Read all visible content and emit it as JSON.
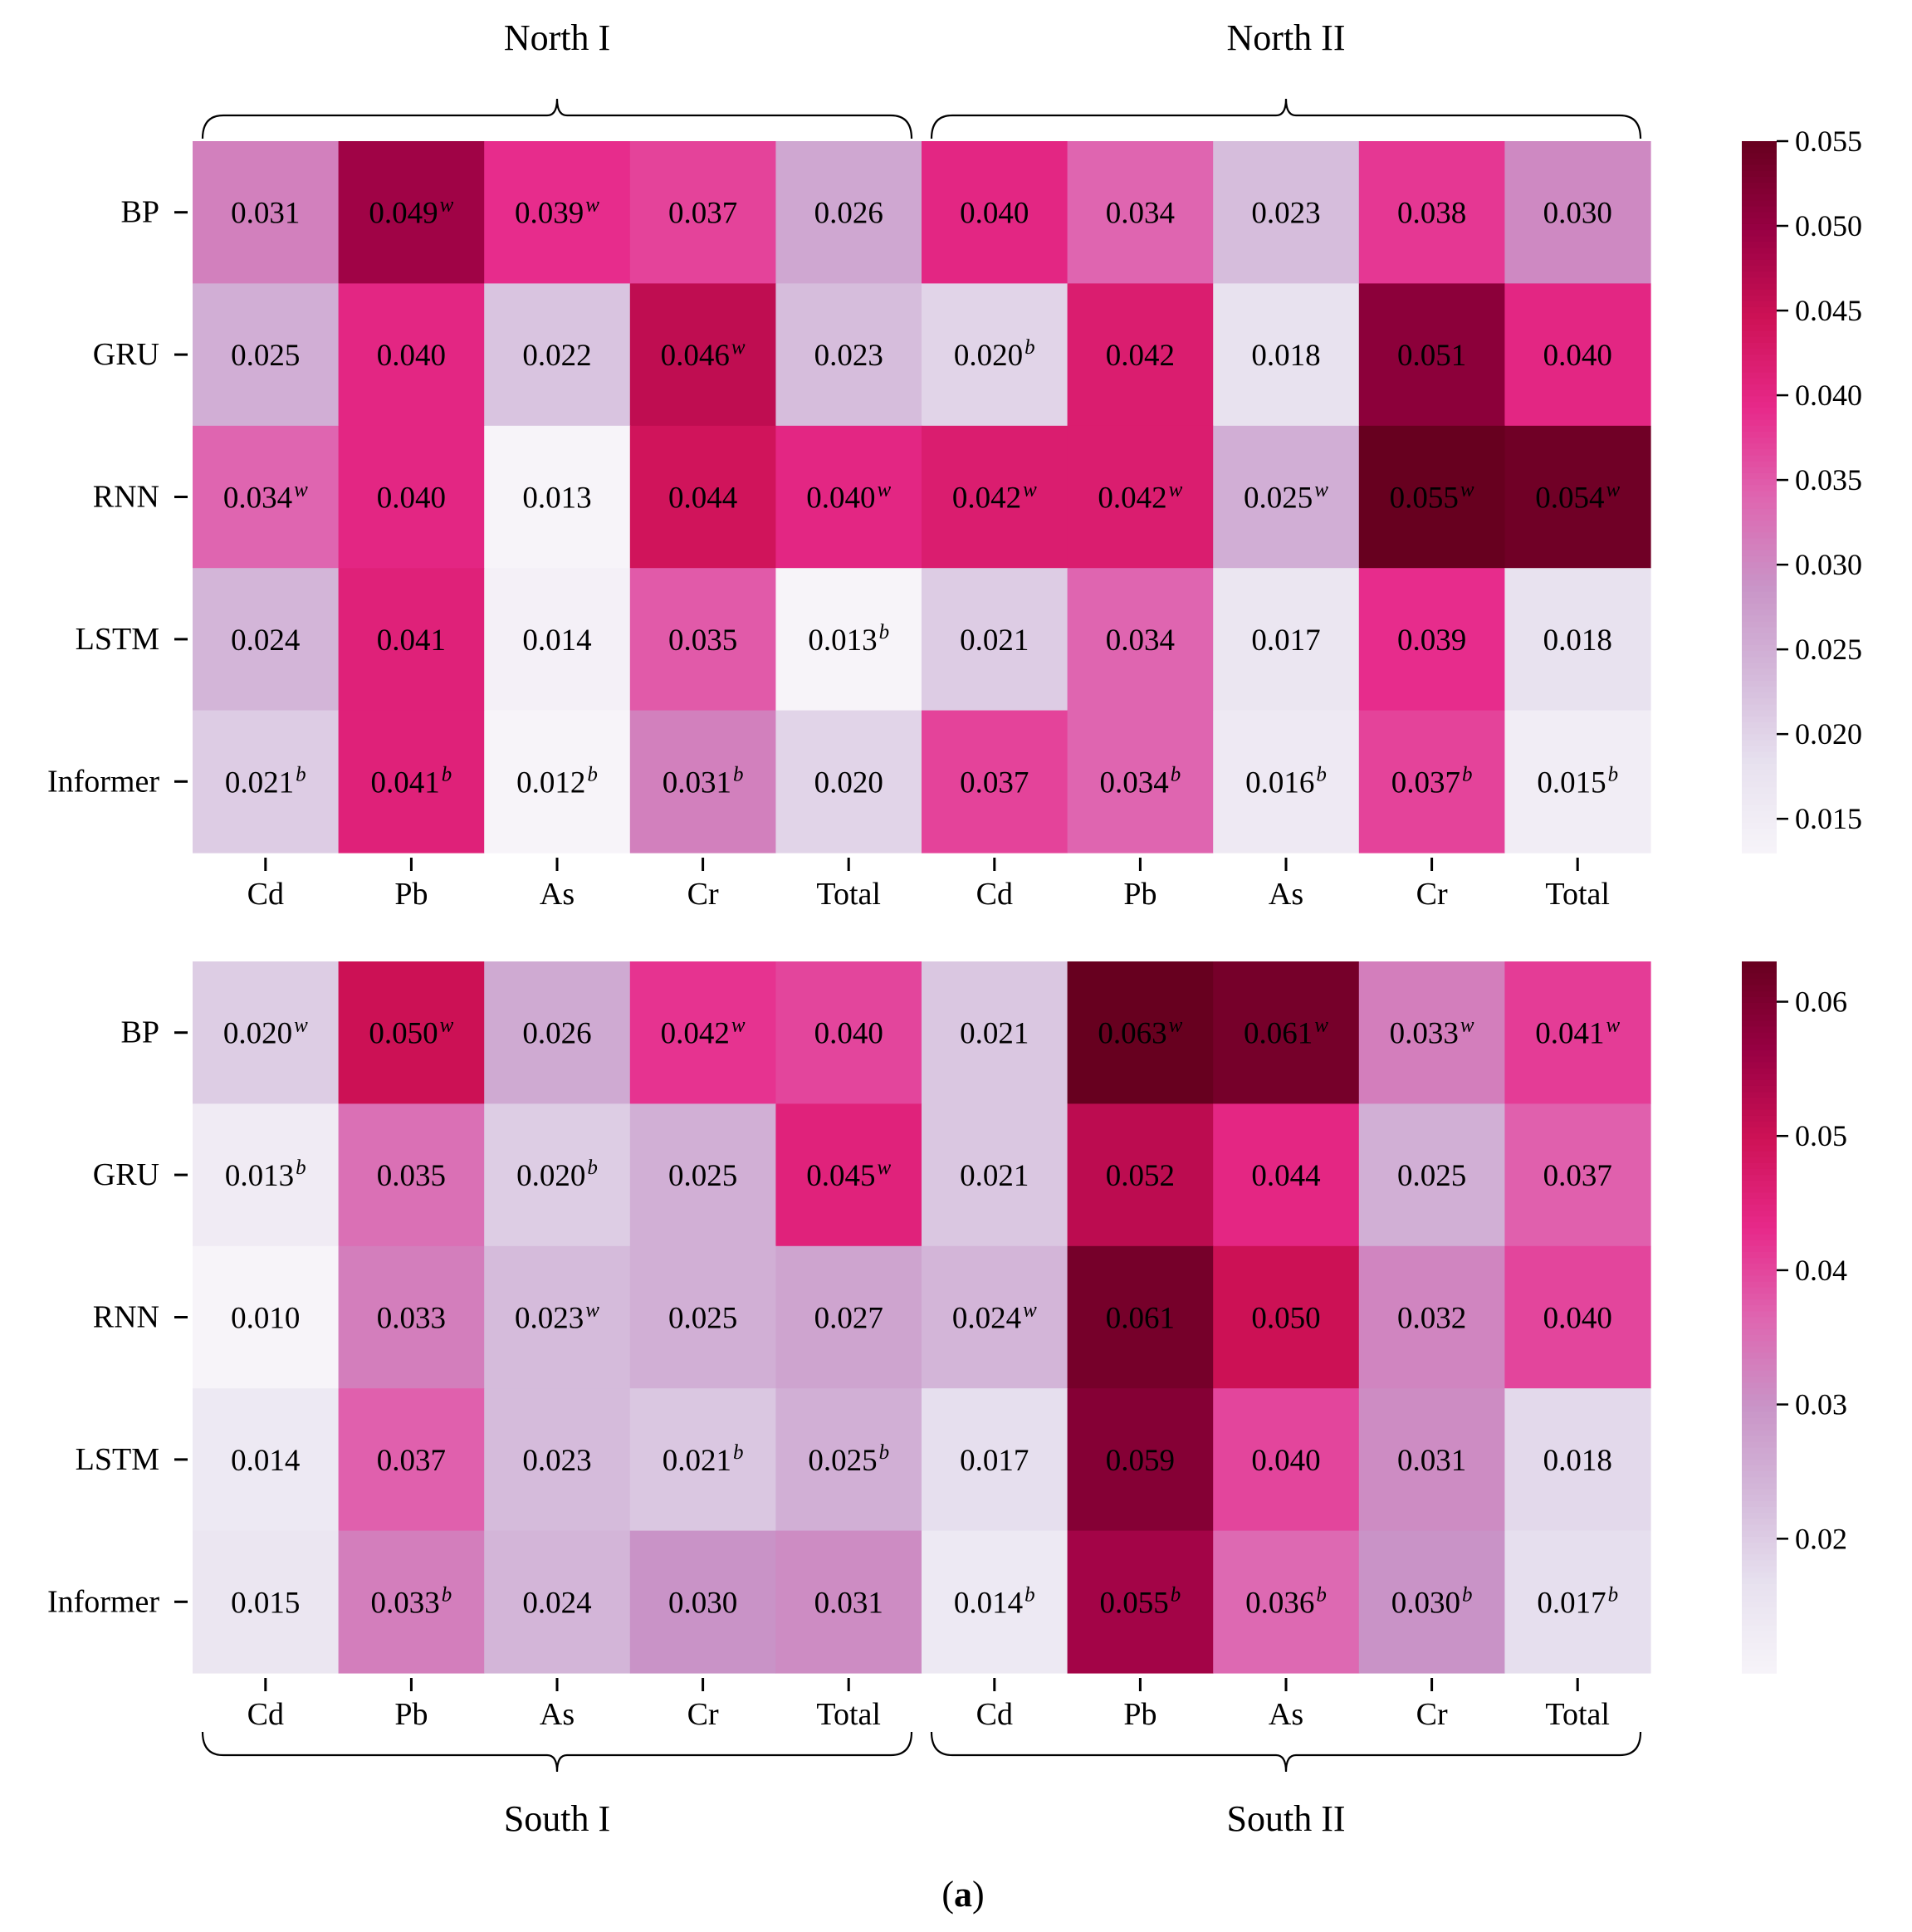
{
  "caption": {
    "open": "(",
    "letter": "a",
    "close": ")"
  },
  "colors": {
    "scale": [
      "#f7f4f9",
      "#e7e1ef",
      "#d4b9da",
      "#c994c7",
      "#df65b0",
      "#e7298a",
      "#ce1256",
      "#980043",
      "#67001f"
    ]
  },
  "chart_data": [
    {
      "type": "heatmap",
      "title": "",
      "rows": [
        "BP",
        "GRU",
        "RNN",
        "LSTM",
        "Informer"
      ],
      "columns": [
        "Cd",
        "Pb",
        "As",
        "Cr",
        "Total",
        "Cd",
        "Pb",
        "As",
        "Cr",
        "Total"
      ],
      "groups": [
        {
          "label": "North I",
          "columns": [
            0,
            4
          ]
        },
        {
          "label": "North II",
          "columns": [
            5,
            9
          ]
        }
      ],
      "values": [
        [
          0.031,
          0.049,
          0.039,
          0.037,
          0.026,
          0.04,
          0.034,
          0.023,
          0.038,
          0.03
        ],
        [
          0.025,
          0.04,
          0.022,
          0.046,
          0.023,
          0.02,
          0.042,
          0.018,
          0.051,
          0.04
        ],
        [
          0.034,
          0.04,
          0.013,
          0.044,
          0.04,
          0.042,
          0.042,
          0.025,
          0.055,
          0.054
        ],
        [
          0.024,
          0.041,
          0.014,
          0.035,
          0.013,
          0.021,
          0.034,
          0.017,
          0.039,
          0.018
        ],
        [
          0.021,
          0.041,
          0.012,
          0.031,
          0.02,
          0.037,
          0.034,
          0.016,
          0.037,
          0.015
        ]
      ],
      "labels": [
        [
          "0.031",
          "0.049",
          "0.039",
          "0.037",
          "0.026",
          "0.040",
          "0.034",
          "0.023",
          "0.038",
          "0.030"
        ],
        [
          "0.025",
          "0.040",
          "0.022",
          "0.046",
          "0.023",
          "0.020",
          "0.042",
          "0.018",
          "0.051",
          "0.040"
        ],
        [
          "0.034",
          "0.040",
          "0.013",
          "0.044",
          "0.040",
          "0.042",
          "0.042",
          "0.025",
          "0.055",
          "0.054"
        ],
        [
          "0.024",
          "0.041",
          "0.014",
          "0.035",
          "0.013",
          "0.021",
          "0.034",
          "0.017",
          "0.039",
          "0.018"
        ],
        [
          "0.021",
          "0.041",
          "0.012",
          "0.031",
          "0.020",
          "0.037",
          "0.034",
          "0.016",
          "0.037",
          "0.015"
        ]
      ],
      "superscripts": [
        [
          "",
          "w",
          "w",
          "",
          "",
          "",
          "",
          "",
          "",
          ""
        ],
        [
          "",
          "",
          "",
          "w",
          "",
          "b",
          "",
          "",
          "",
          ""
        ],
        [
          "w",
          "",
          "",
          "",
          "w",
          "w",
          "w",
          "w",
          "w",
          "w"
        ],
        [
          "",
          "",
          "",
          "",
          "b",
          "",
          "",
          "",
          "",
          ""
        ],
        [
          "b",
          "b",
          "b",
          "b",
          "",
          "",
          "b",
          "b",
          "b",
          "b"
        ]
      ],
      "colorbar": {
        "min": 0.013,
        "max": 0.055,
        "ticks": [
          0.015,
          0.02,
          0.025,
          0.03,
          0.035,
          0.04,
          0.045,
          0.05,
          0.055
        ],
        "tick_labels": [
          "0.015",
          "0.020",
          "0.025",
          "0.030",
          "0.035",
          "0.040",
          "0.045",
          "0.050",
          "0.055"
        ]
      }
    },
    {
      "type": "heatmap",
      "title": "",
      "rows": [
        "BP",
        "GRU",
        "RNN",
        "LSTM",
        "Informer"
      ],
      "columns": [
        "Cd",
        "Pb",
        "As",
        "Cr",
        "Total",
        "Cd",
        "Pb",
        "As",
        "Cr",
        "Total"
      ],
      "groups": [
        {
          "label": "South I",
          "columns": [
            0,
            4
          ]
        },
        {
          "label": "South II",
          "columns": [
            5,
            9
          ]
        }
      ],
      "values": [
        [
          0.02,
          0.05,
          0.026,
          0.042,
          0.04,
          0.021,
          0.063,
          0.061,
          0.033,
          0.041
        ],
        [
          0.013,
          0.035,
          0.02,
          0.025,
          0.045,
          0.021,
          0.052,
          0.044,
          0.025,
          0.037
        ],
        [
          0.01,
          0.033,
          0.023,
          0.025,
          0.027,
          0.024,
          0.061,
          0.05,
          0.032,
          0.04
        ],
        [
          0.014,
          0.037,
          0.023,
          0.021,
          0.025,
          0.017,
          0.059,
          0.04,
          0.031,
          0.018
        ],
        [
          0.015,
          0.033,
          0.024,
          0.03,
          0.031,
          0.014,
          0.055,
          0.036,
          0.03,
          0.017
        ]
      ],
      "labels": [
        [
          "0.020",
          "0.050",
          "0.026",
          "0.042",
          "0.040",
          "0.021",
          "0.063",
          "0.061",
          "0.033",
          "0.041"
        ],
        [
          "0.013",
          "0.035",
          "0.020",
          "0.025",
          "0.045",
          "0.021",
          "0.052",
          "0.044",
          "0.025",
          "0.037"
        ],
        [
          "0.010",
          "0.033",
          "0.023",
          "0.025",
          "0.027",
          "0.024",
          "0.061",
          "0.050",
          "0.032",
          "0.040"
        ],
        [
          "0.014",
          "0.037",
          "0.023",
          "0.021",
          "0.025",
          "0.017",
          "0.059",
          "0.040",
          "0.031",
          "0.018"
        ],
        [
          "0.015",
          "0.033",
          "0.024",
          "0.030",
          "0.031",
          "0.014",
          "0.055",
          "0.036",
          "0.030",
          "0.017"
        ]
      ],
      "superscripts": [
        [
          "w",
          "w",
          "",
          "w",
          "",
          "",
          "w",
          "w",
          "w",
          "w"
        ],
        [
          "b",
          "",
          "b",
          "",
          "w",
          "",
          "",
          "",
          "",
          ""
        ],
        [
          "",
          "",
          "w",
          "",
          "",
          "w",
          "",
          "",
          "",
          ""
        ],
        [
          "",
          "",
          "",
          "b",
          "b",
          "",
          "",
          "",
          "",
          ""
        ],
        [
          "",
          "b",
          "",
          "",
          "",
          "b",
          "b",
          "b",
          "b",
          "b"
        ]
      ],
      "colorbar": {
        "min": 0.01,
        "max": 0.063,
        "ticks": [
          0.02,
          0.03,
          0.04,
          0.05,
          0.06
        ],
        "tick_labels": [
          "0.02",
          "0.03",
          "0.04",
          "0.05",
          "0.06"
        ]
      }
    }
  ]
}
